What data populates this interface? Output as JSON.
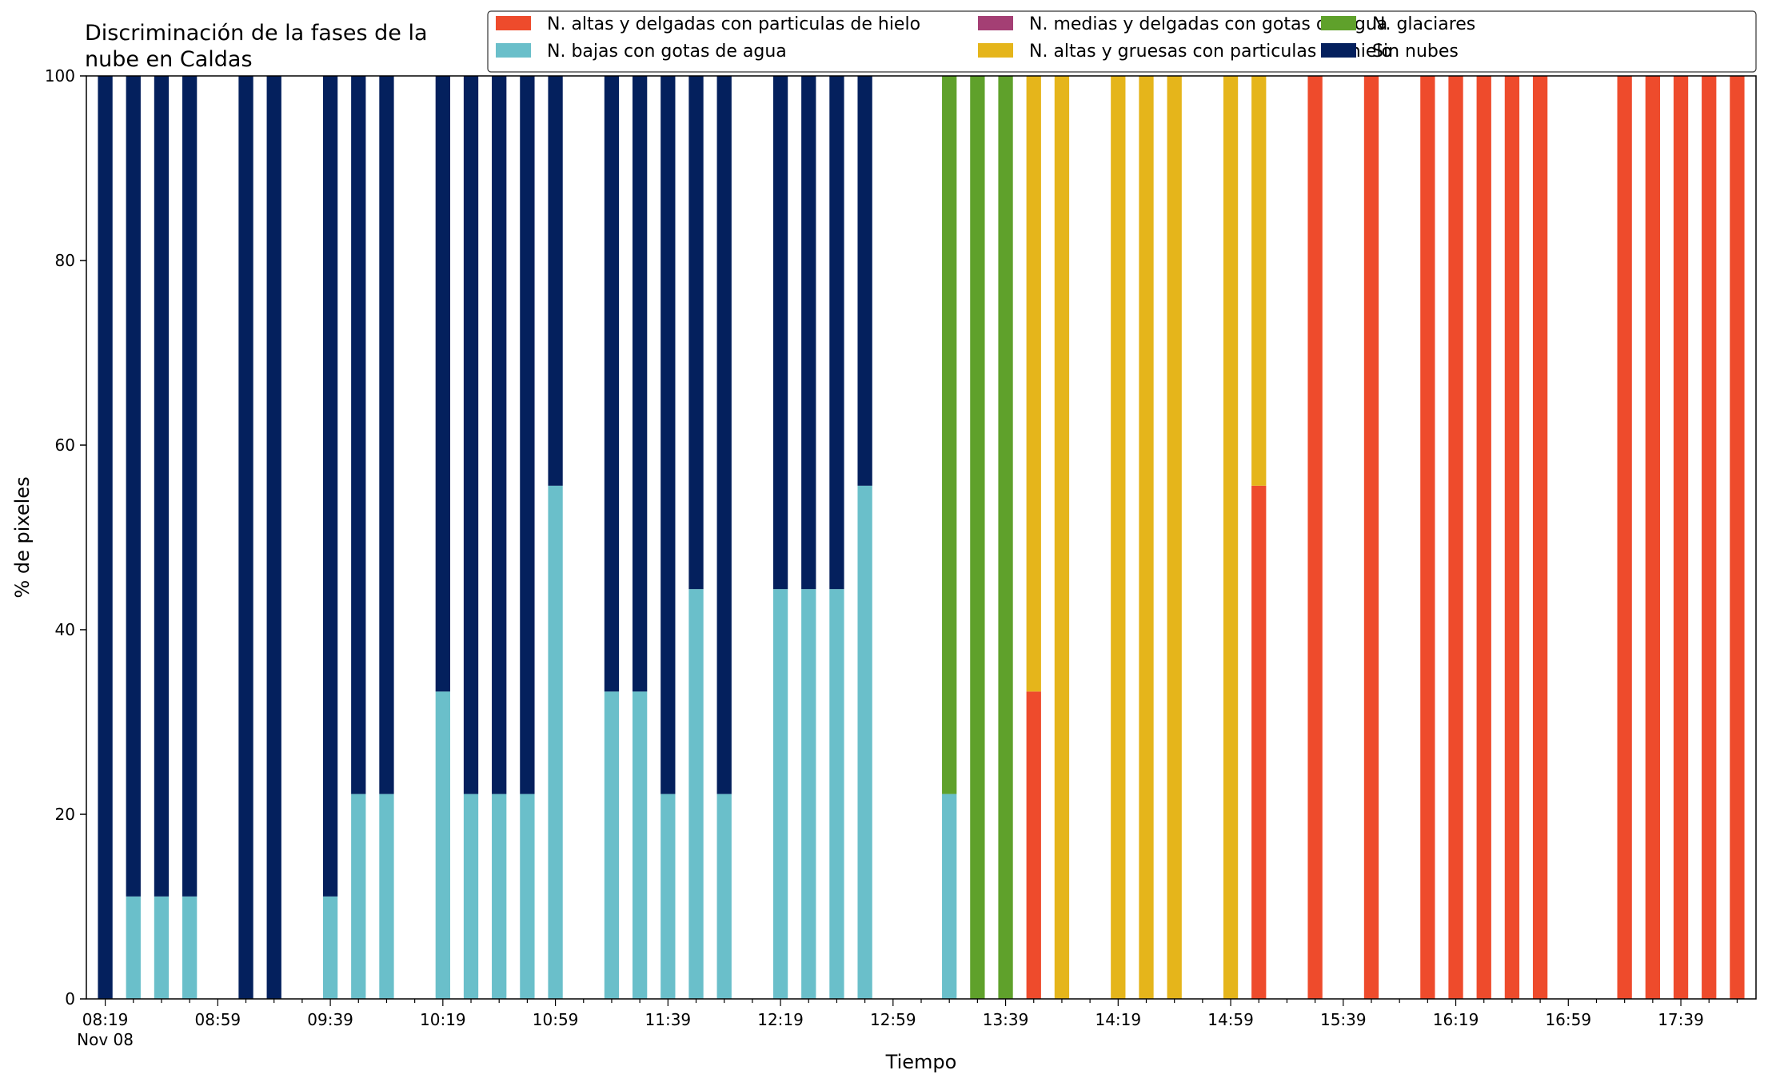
{
  "chart_data": {
    "type": "bar",
    "stacked": true,
    "title_lines": [
      "Discriminación de la fases de la",
      "nube en Caldas"
    ],
    "xlabel": "Tiempo",
    "ylabel": "% de pixeles",
    "ylim": [
      0,
      100
    ],
    "yticks": [
      "0",
      "20",
      "40",
      "60",
      "80",
      "100"
    ],
    "grid": false,
    "legend_position": "top-right",
    "x_start": "08:19",
    "x_end": "17:59",
    "x_interval_minutes": 10,
    "xtick_labels": [
      "08:19",
      "08:59",
      "09:39",
      "10:19",
      "10:59",
      "11:39",
      "12:19",
      "12:59",
      "13:39",
      "14:19",
      "14:59",
      "15:39",
      "16:19",
      "16:59",
      "17:39"
    ],
    "xtick_sublabel": "Nov 08",
    "series": [
      {
        "name": "N. bajas con gotas de agua",
        "color": "#6abfca",
        "values": [
          0,
          11.1,
          11.1,
          11.1,
          0,
          0,
          0,
          0,
          11.1,
          22.2,
          22.2,
          0,
          33.3,
          22.2,
          22.2,
          22.2,
          55.6,
          0,
          33.3,
          33.3,
          22.2,
          44.4,
          22.2,
          0,
          44.4,
          44.4,
          44.4,
          55.6,
          0,
          0,
          22.2,
          0,
          0,
          0,
          0,
          0,
          0,
          0,
          0,
          0,
          0,
          0,
          0,
          0,
          0,
          0,
          0,
          0,
          0,
          0,
          0,
          0,
          0,
          0,
          0,
          0,
          0,
          0,
          0
        ]
      },
      {
        "name": "N. altas y delgadas con particulas de hielo",
        "color": "#ee4b2c",
        "values": [
          0,
          0,
          0,
          0,
          0,
          0,
          0,
          0,
          0,
          0,
          0,
          0,
          0,
          0,
          0,
          0,
          0,
          0,
          0,
          0,
          0,
          0,
          0,
          0,
          0,
          0,
          0,
          0,
          0,
          0,
          0,
          0,
          0,
          33.3,
          0,
          0,
          0,
          0,
          0,
          0,
          0,
          55.6,
          0,
          100,
          0,
          100,
          0,
          100,
          100,
          100,
          100,
          100,
          0,
          0,
          100,
          100,
          100,
          100,
          100
        ]
      },
      {
        "name": "N. altas y gruesas con particulas de hielo",
        "color": "#e5b51b",
        "values": [
          0,
          0,
          0,
          0,
          0,
          0,
          0,
          0,
          0,
          0,
          0,
          0,
          0,
          0,
          0,
          0,
          0,
          0,
          0,
          0,
          0,
          0,
          0,
          0,
          0,
          0,
          0,
          0,
          0,
          0,
          0,
          0,
          0,
          66.7,
          100,
          0,
          100,
          100,
          100,
          0,
          100,
          44.4,
          0,
          0,
          0,
          0,
          0,
          0,
          0,
          0,
          0,
          0,
          0,
          0,
          0,
          0,
          0,
          0,
          0
        ]
      },
      {
        "name": "N. glaciares",
        "color": "#5fa12b",
        "values": [
          0,
          0,
          0,
          0,
          0,
          0,
          0,
          0,
          0,
          0,
          0,
          0,
          0,
          0,
          0,
          0,
          0,
          0,
          0,
          0,
          0,
          0,
          0,
          0,
          0,
          0,
          0,
          0,
          0,
          0,
          77.8,
          100,
          100,
          0,
          0,
          0,
          0,
          0,
          0,
          0,
          0,
          0,
          0,
          0,
          0,
          0,
          0,
          0,
          0,
          0,
          0,
          0,
          0,
          0,
          0,
          0,
          0,
          0,
          0
        ]
      },
      {
        "name": "N. medias y delgadas con gotas de agua",
        "color": "#a43f74",
        "values": [
          0,
          0,
          0,
          0,
          0,
          0,
          0,
          0,
          0,
          0,
          0,
          0,
          0,
          0,
          0,
          0,
          0,
          0,
          0,
          0,
          0,
          0,
          0,
          0,
          0,
          0,
          0,
          0,
          0,
          0,
          0,
          0,
          0,
          0,
          0,
          0,
          0,
          0,
          0,
          0,
          0,
          0,
          0,
          0,
          0,
          0,
          0,
          0,
          0,
          0,
          0,
          0,
          0,
          0,
          0,
          0,
          0,
          0,
          0
        ]
      },
      {
        "name": "Sin nubes",
        "color": "#04205d",
        "values": [
          100,
          88.9,
          88.9,
          88.9,
          0,
          100,
          100,
          0,
          88.9,
          77.8,
          77.8,
          0,
          66.7,
          77.8,
          77.8,
          77.8,
          44.4,
          0,
          66.7,
          66.7,
          77.8,
          55.6,
          77.8,
          0,
          55.6,
          55.6,
          55.6,
          44.4,
          0,
          0,
          0,
          0,
          0,
          0,
          0,
          0,
          0,
          0,
          0,
          0,
          0,
          0,
          0,
          0,
          0,
          0,
          0,
          0,
          0,
          0,
          0,
          0,
          0,
          0,
          0,
          0,
          0,
          0,
          0
        ]
      }
    ],
    "legend_order": [
      "N. altas y delgadas con particulas de hielo",
      "N. bajas con gotas de agua",
      "N. medias y delgadas con gotas de agua",
      "N. altas y gruesas con particulas de hielo",
      "N. glaciares",
      "Sin nubes"
    ]
  }
}
